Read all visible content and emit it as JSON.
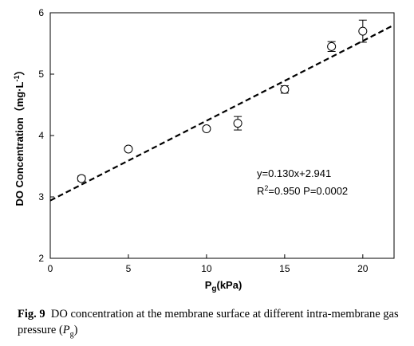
{
  "chart_data": {
    "type": "scatter",
    "xlabel": {
      "main": "P",
      "sub": "g",
      "rest": "(kPa)"
    },
    "ylabel": {
      "main": "DO Concentration（mg·L",
      "sup": "-1",
      "rest": "）"
    },
    "xlim": [
      0,
      22
    ],
    "ylim": [
      2,
      6
    ],
    "x_ticks": [
      0,
      5,
      10,
      15,
      20
    ],
    "y_ticks": [
      2,
      3,
      4,
      5,
      6
    ],
    "points": [
      {
        "x": 2,
        "y": 3.3,
        "err": 0.04
      },
      {
        "x": 5,
        "y": 3.78,
        "err": 0.0
      },
      {
        "x": 10,
        "y": 4.11,
        "err": 0.03
      },
      {
        "x": 12,
        "y": 4.2,
        "err": 0.11
      },
      {
        "x": 15,
        "y": 4.75,
        "err": 0.06
      },
      {
        "x": 18,
        "y": 5.45,
        "err": 0.08
      },
      {
        "x": 20,
        "y": 5.7,
        "err": 0.18
      }
    ],
    "fit": {
      "slope": 0.13,
      "intercept": 2.941,
      "style": "dashed"
    },
    "annotations": {
      "equation": "y=0.130x+2.941",
      "r_label": "R",
      "r_sup": "2",
      "r_rest": "=0.950 P=0.0002"
    },
    "grid": false
  },
  "caption": {
    "fig": "Fig. 9",
    "text": "DO concentration at the membrane surface at different intra-membrane gas pressure (",
    "var": "P",
    "var_sub": "g",
    "close": ")"
  }
}
